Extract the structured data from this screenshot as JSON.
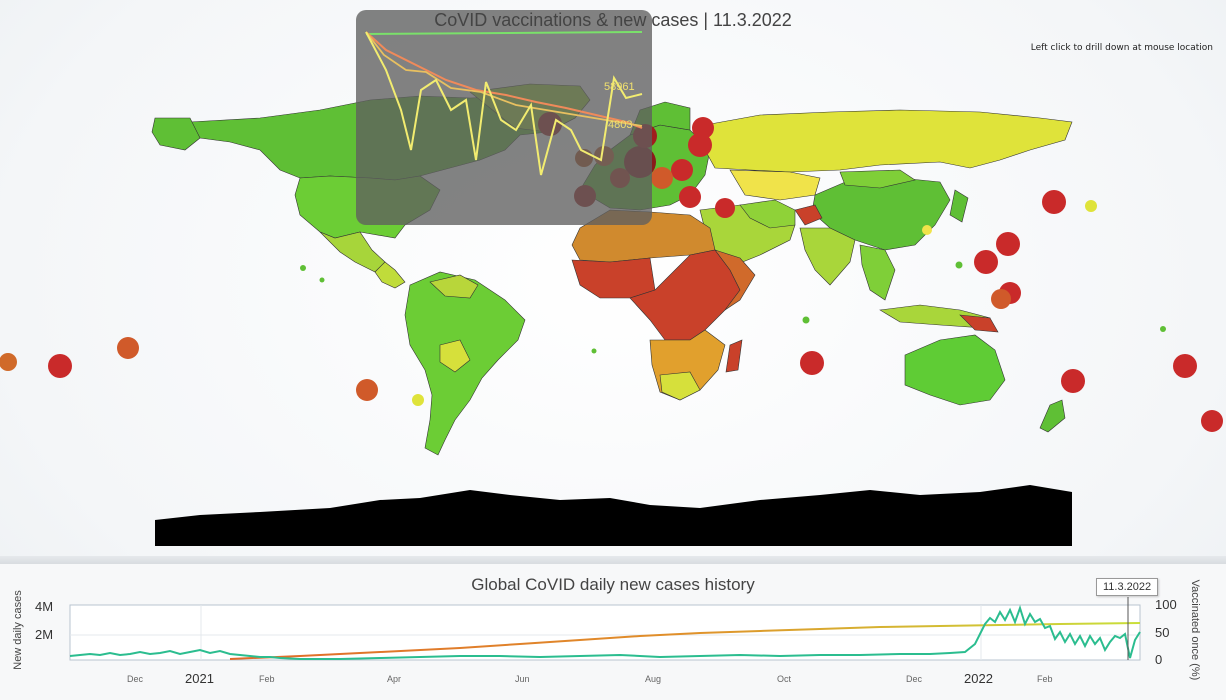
{
  "map": {
    "title": "CoVID vaccinations & new cases | 11.3.2022",
    "hint": "Left click to drill down at mouse location",
    "inset": {
      "label_1": "58961",
      "label_2": "4803"
    }
  },
  "colors": {
    "high_vacc": "#5ec935",
    "mid_vacc": "#c8df3a",
    "low_vacc": "#e1a02d",
    "very_low_vacc": "#c9412a",
    "no_data": "#000000",
    "ocean_bg": "#f4f6f8",
    "cases_line": "#2bbd8f",
    "vacc_line_start": "#e06a2a",
    "vacc_line_end": "#c9df3a"
  },
  "history": {
    "title": "Global CoVID daily new cases history",
    "y_left_label": "New daily cases",
    "y_right_label": "Vaccinated once (%)",
    "selected_date": "11.3.2022",
    "y_left_ticks": [
      "4M",
      "2M"
    ],
    "y_right_ticks": [
      "100",
      "50",
      "0"
    ],
    "x_ticks_small": [
      "Dec",
      "Feb",
      "Apr",
      "Jun",
      "Aug",
      "Oct",
      "Dec",
      "Feb"
    ],
    "x_ticks_large": [
      "2021",
      "2022"
    ]
  }
}
